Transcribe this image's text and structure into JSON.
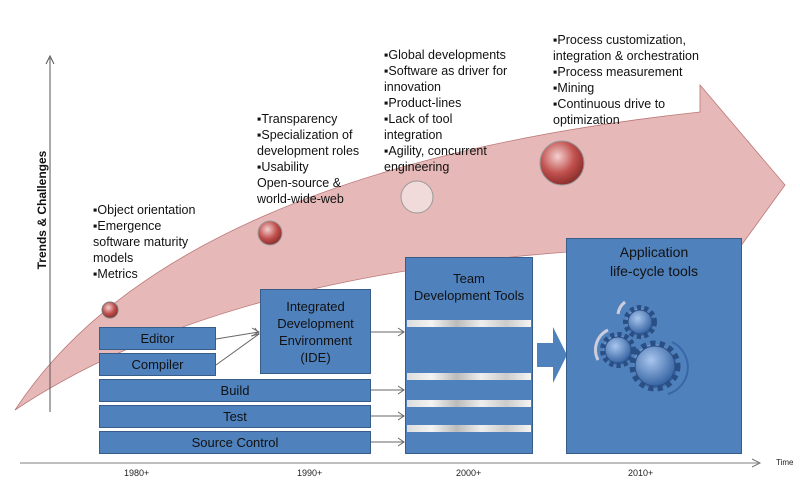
{
  "axis": {
    "y_label": "Trends & Challenges",
    "x_label": "Time",
    "years": [
      "1980+",
      "1990+",
      "2000+",
      "2010+"
    ]
  },
  "trends": {
    "e1980": [
      "▪Object orientation",
      "▪Emergence",
      "software maturity",
      "models",
      "▪Metrics"
    ],
    "e1990": [
      "▪Transparency",
      "▪Specialization of",
      "development roles",
      "▪Usability",
      "Open-source &",
      "world-wide-web"
    ],
    "e2000": [
      "▪Global developments",
      "▪Software as driver for",
      "innovation",
      "▪Product-lines",
      "▪Lack of tool",
      "integration",
      "▪Agility, concurrent",
      "engineering"
    ],
    "e2010": [
      "▪Process customization,",
      "integration &  orchestration",
      "▪Process measurement",
      "▪Mining",
      "▪Continuous drive to",
      "optimization"
    ]
  },
  "boxes": {
    "editor": "Editor",
    "compiler": "Compiler",
    "ide": [
      "Integrated",
      "Development",
      "Environment",
      "(IDE)"
    ],
    "build": "Build",
    "test": "Test",
    "source_control": "Source Control",
    "team": [
      "Team",
      "Development Tools"
    ],
    "alm": [
      "Application",
      "life-cycle tools"
    ]
  },
  "colors": {
    "box": "#4f81bd",
    "arrow": "#e6b9b8",
    "ball": "#c0504d"
  }
}
